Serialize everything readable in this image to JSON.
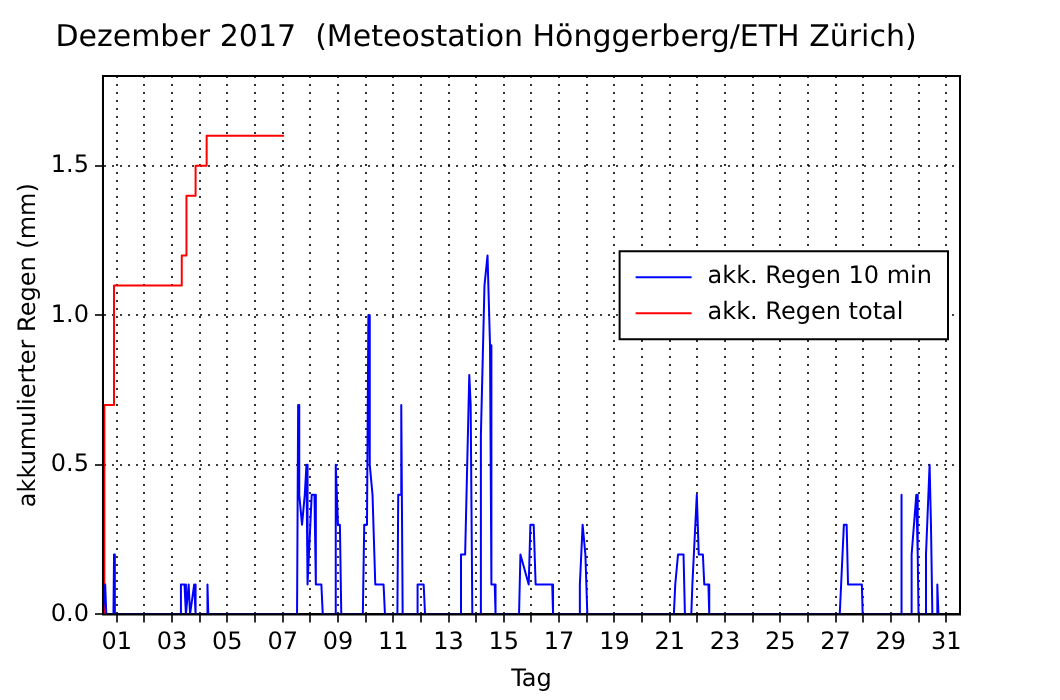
{
  "chart_data": {
    "type": "line",
    "title": "Dezember 2017  (Meteostation Hönggerberg/ETH Zürich)",
    "xlabel": "Tag",
    "ylabel": "akkumulierter Regen (mm)",
    "xlim": [
      0.5,
      31.5
    ],
    "xticks": [
      {
        "value": 1,
        "label": "01"
      },
      {
        "value": 2,
        "label": null
      },
      {
        "value": 3,
        "label": "03"
      },
      {
        "value": 4,
        "label": null
      },
      {
        "value": 5,
        "label": "05"
      },
      {
        "value": 6,
        "label": null
      },
      {
        "value": 7,
        "label": "07"
      },
      {
        "value": 8,
        "label": null
      },
      {
        "value": 9,
        "label": "09"
      },
      {
        "value": 10,
        "label": null
      },
      {
        "value": 11,
        "label": "11"
      },
      {
        "value": 12,
        "label": null
      },
      {
        "value": 13,
        "label": "13"
      },
      {
        "value": 14,
        "label": null
      },
      {
        "value": 15,
        "label": "15"
      },
      {
        "value": 16,
        "label": null
      },
      {
        "value": 17,
        "label": "17"
      },
      {
        "value": 18,
        "label": null
      },
      {
        "value": 19,
        "label": "19"
      },
      {
        "value": 20,
        "label": null
      },
      {
        "value": 21,
        "label": "21"
      },
      {
        "value": 22,
        "label": null
      },
      {
        "value": 23,
        "label": "23"
      },
      {
        "value": 24,
        "label": null
      },
      {
        "value": 25,
        "label": "25"
      },
      {
        "value": 26,
        "label": null
      },
      {
        "value": 27,
        "label": "27"
      },
      {
        "value": 28,
        "label": null
      },
      {
        "value": 29,
        "label": "29"
      },
      {
        "value": 30,
        "label": null
      },
      {
        "value": 31,
        "label": "31"
      }
    ],
    "ylim": [
      0,
      1.8
    ],
    "yticks": [
      {
        "value": 0,
        "label": "0.0"
      },
      {
        "value": 0.5,
        "label": "0.5"
      },
      {
        "value": 1,
        "label": "1.0"
      },
      {
        "value": 1.5,
        "label": "1.5"
      }
    ],
    "grid": true,
    "line_style": "solid",
    "marker": "none",
    "legend": "right",
    "series": [
      {
        "name": "akk. Regen 10 min",
        "color": "#0000ff",
        "x": [
          0.5,
          0.58,
          0.62,
          0.88,
          0.9,
          0.93,
          3.3,
          3.32,
          3.45,
          3.5,
          3.6,
          3.65,
          3.8,
          3.85,
          4.26,
          4.28,
          4.31,
          7.52,
          7.56,
          7.6,
          7.7,
          7.8,
          7.86,
          7.9,
          8.05,
          8.15,
          8.2,
          8.4,
          8.45,
          8.88,
          8.92,
          9.0,
          9.07,
          9.12,
          9.9,
          9.95,
          10.05,
          10.1,
          10.15,
          10.25,
          10.35,
          10.65,
          10.7,
          11.15,
          11.18,
          11.25,
          11.29,
          11.34,
          11.85,
          11.88,
          12.1,
          12.15,
          13.42,
          13.45,
          13.6,
          13.75,
          13.8,
          13.86,
          14.14,
          14.17,
          14.3,
          14.41,
          14.5,
          14.55,
          14.67,
          14.7,
          15.55,
          15.6,
          15.9,
          15.96,
          16.08,
          16.15,
          16.75,
          16.78,
          17.7,
          17.75,
          17.85,
          17.95,
          18.02,
          21.15,
          21.2,
          21.3,
          21.5,
          21.55,
          21.78,
          21.82,
          21.98,
          22.05,
          22.2,
          22.25,
          22.4,
          22.43,
          27.15,
          27.2,
          27.3,
          27.4,
          27.45,
          27.95,
          27.98,
          29.35,
          29.37,
          29.4,
          29.72,
          29.75,
          29.92,
          29.97,
          30.0,
          30.23,
          30.27,
          30.4,
          30.45,
          30.5,
          30.66,
          30.68,
          30.72
        ],
        "values": [
          0,
          0.1,
          0,
          0,
          0.2,
          0,
          0,
          0.1,
          0.1,
          0,
          0.1,
          0,
          0.1,
          0,
          0,
          0.1,
          0,
          0,
          0.7,
          0.4,
          0.3,
          0.4,
          0.5,
          0.1,
          0.4,
          0.4,
          0.1,
          0.1,
          0,
          0,
          0.5,
          0.3,
          0.3,
          0,
          0,
          0.3,
          0.3,
          1.0,
          0.5,
          0.4,
          0.1,
          0.1,
          0,
          0,
          0.4,
          0.4,
          0.7,
          0,
          0,
          0.1,
          0.1,
          0,
          0,
          0.2,
          0.2,
          0.8,
          0.7,
          0,
          0,
          0.6,
          1.1,
          1.2,
          0.9,
          0.1,
          0.1,
          0,
          0,
          0.2,
          0.1,
          0.3,
          0.3,
          0.1,
          0.1,
          0,
          0,
          0.1,
          0.3,
          0.2,
          0,
          0,
          0.1,
          0.2,
          0.2,
          0,
          0,
          0.1,
          0.4,
          0.2,
          0.2,
          0.1,
          0.1,
          0,
          0,
          0.1,
          0.3,
          0.3,
          0.1,
          0.1,
          0,
          0,
          0.4,
          0,
          0,
          0.2,
          0.4,
          0.2,
          0,
          0,
          0.2,
          0.5,
          0.3,
          0,
          0,
          0.1,
          0
        ]
      },
      {
        "name": "akk. Regen total",
        "color": "#ff0000",
        "type": "step",
        "x": [
          0.5,
          0.55,
          0.9,
          3.35,
          3.52,
          3.85,
          4.25,
          7.05
        ],
        "values": [
          0,
          0.7,
          1.1,
          1.2,
          1.4,
          1.5,
          1.6,
          1.6
        ]
      }
    ]
  }
}
